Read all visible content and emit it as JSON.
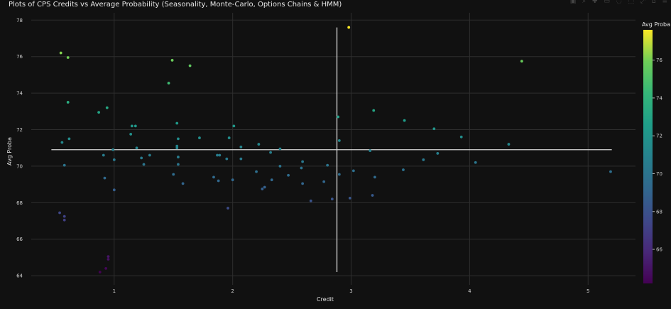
{
  "chart_data": {
    "type": "scatter",
    "title": "Plots of CPS Credits vs Average Probability (Seasonality, Monte-Carlo, Options Chains & HMM)",
    "xlabel": "Credit",
    "ylabel": "Avg Proba",
    "xlim": [
      0.3,
      5.4
    ],
    "ylim": [
      63.5,
      78.4
    ],
    "x_ticks": [
      1,
      2,
      3,
      4,
      5
    ],
    "y_ticks": [
      64,
      66,
      68,
      70,
      72,
      74,
      76,
      78
    ],
    "grid": true,
    "colorbar": {
      "title": "Avg Proba",
      "colorscale": "Viridis",
      "range": [
        64.2,
        77.6
      ],
      "ticks": [
        66,
        68,
        70,
        72,
        74,
        76
      ]
    },
    "reference_lines": {
      "horizontal": {
        "y": 70.9,
        "x_from": 0.47,
        "x_to": 5.2
      },
      "vertical": {
        "x": 2.88,
        "y_from": 64.2,
        "y_to": 77.6
      }
    },
    "points": [
      {
        "x": 0.55,
        "y": 76.2
      },
      {
        "x": 0.61,
        "y": 75.95
      },
      {
        "x": 1.49,
        "y": 75.8
      },
      {
        "x": 1.64,
        "y": 75.5
      },
      {
        "x": 1.46,
        "y": 74.55
      },
      {
        "x": 2.98,
        "y": 77.6
      },
      {
        "x": 4.44,
        "y": 75.75
      },
      {
        "x": 0.61,
        "y": 73.5
      },
      {
        "x": 0.94,
        "y": 73.2
      },
      {
        "x": 0.87,
        "y": 72.95
      },
      {
        "x": 1.53,
        "y": 72.35
      },
      {
        "x": 1.15,
        "y": 72.2
      },
      {
        "x": 1.18,
        "y": 72.2
      },
      {
        "x": 2.01,
        "y": 72.2
      },
      {
        "x": 2.89,
        "y": 72.7
      },
      {
        "x": 3.19,
        "y": 73.05
      },
      {
        "x": 3.45,
        "y": 72.5
      },
      {
        "x": 3.7,
        "y": 72.05
      },
      {
        "x": 0.56,
        "y": 71.3
      },
      {
        "x": 0.62,
        "y": 71.5
      },
      {
        "x": 1.14,
        "y": 71.75
      },
      {
        "x": 1.19,
        "y": 71.0
      },
      {
        "x": 1.53,
        "y": 71.1
      },
      {
        "x": 1.54,
        "y": 71.5
      },
      {
        "x": 1.53,
        "y": 71.0
      },
      {
        "x": 1.72,
        "y": 71.55
      },
      {
        "x": 1.97,
        "y": 71.55
      },
      {
        "x": 2.07,
        "y": 71.05
      },
      {
        "x": 2.22,
        "y": 71.2
      },
      {
        "x": 2.4,
        "y": 70.95
      },
      {
        "x": 2.9,
        "y": 71.4
      },
      {
        "x": 3.93,
        "y": 71.6
      },
      {
        "x": 4.33,
        "y": 71.2
      },
      {
        "x": 0.99,
        "y": 70.9
      },
      {
        "x": 0.91,
        "y": 70.6
      },
      {
        "x": 1.0,
        "y": 70.35
      },
      {
        "x": 1.23,
        "y": 70.45
      },
      {
        "x": 1.25,
        "y": 70.1
      },
      {
        "x": 1.3,
        "y": 70.6
      },
      {
        "x": 1.54,
        "y": 70.5
      },
      {
        "x": 1.54,
        "y": 70.1
      },
      {
        "x": 1.87,
        "y": 70.6
      },
      {
        "x": 1.89,
        "y": 70.6
      },
      {
        "x": 1.95,
        "y": 70.4
      },
      {
        "x": 2.07,
        "y": 70.4
      },
      {
        "x": 2.32,
        "y": 70.75
      },
      {
        "x": 2.4,
        "y": 70.0
      },
      {
        "x": 2.58,
        "y": 69.9
      },
      {
        "x": 2.59,
        "y": 70.25
      },
      {
        "x": 2.8,
        "y": 70.05
      },
      {
        "x": 3.16,
        "y": 70.85
      },
      {
        "x": 3.61,
        "y": 70.35
      },
      {
        "x": 3.73,
        "y": 70.7
      },
      {
        "x": 4.05,
        "y": 70.2
      },
      {
        "x": 0.58,
        "y": 70.05
      },
      {
        "x": 0.92,
        "y": 69.35
      },
      {
        "x": 1.0,
        "y": 68.7
      },
      {
        "x": 1.5,
        "y": 69.55
      },
      {
        "x": 1.58,
        "y": 69.05
      },
      {
        "x": 1.84,
        "y": 69.4
      },
      {
        "x": 1.88,
        "y": 69.2
      },
      {
        "x": 2.0,
        "y": 69.25
      },
      {
        "x": 2.2,
        "y": 69.7
      },
      {
        "x": 2.25,
        "y": 68.75
      },
      {
        "x": 2.27,
        "y": 68.85
      },
      {
        "x": 2.33,
        "y": 69.25
      },
      {
        "x": 2.47,
        "y": 69.5
      },
      {
        "x": 2.59,
        "y": 69.05
      },
      {
        "x": 2.77,
        "y": 69.15
      },
      {
        "x": 2.9,
        "y": 69.55
      },
      {
        "x": 3.02,
        "y": 69.75
      },
      {
        "x": 3.2,
        "y": 69.4
      },
      {
        "x": 3.44,
        "y": 69.8
      },
      {
        "x": 5.19,
        "y": 69.7
      },
      {
        "x": 2.66,
        "y": 68.1
      },
      {
        "x": 2.84,
        "y": 68.2
      },
      {
        "x": 2.99,
        "y": 68.25
      },
      {
        "x": 3.18,
        "y": 68.4
      },
      {
        "x": 1.96,
        "y": 67.7
      },
      {
        "x": 0.54,
        "y": 67.45
      },
      {
        "x": 0.58,
        "y": 67.25
      },
      {
        "x": 0.58,
        "y": 67.05
      },
      {
        "x": 0.95,
        "y": 65.05
      },
      {
        "x": 0.95,
        "y": 64.9
      },
      {
        "x": 0.93,
        "y": 64.4
      },
      {
        "x": 0.88,
        "y": 64.2
      }
    ]
  }
}
